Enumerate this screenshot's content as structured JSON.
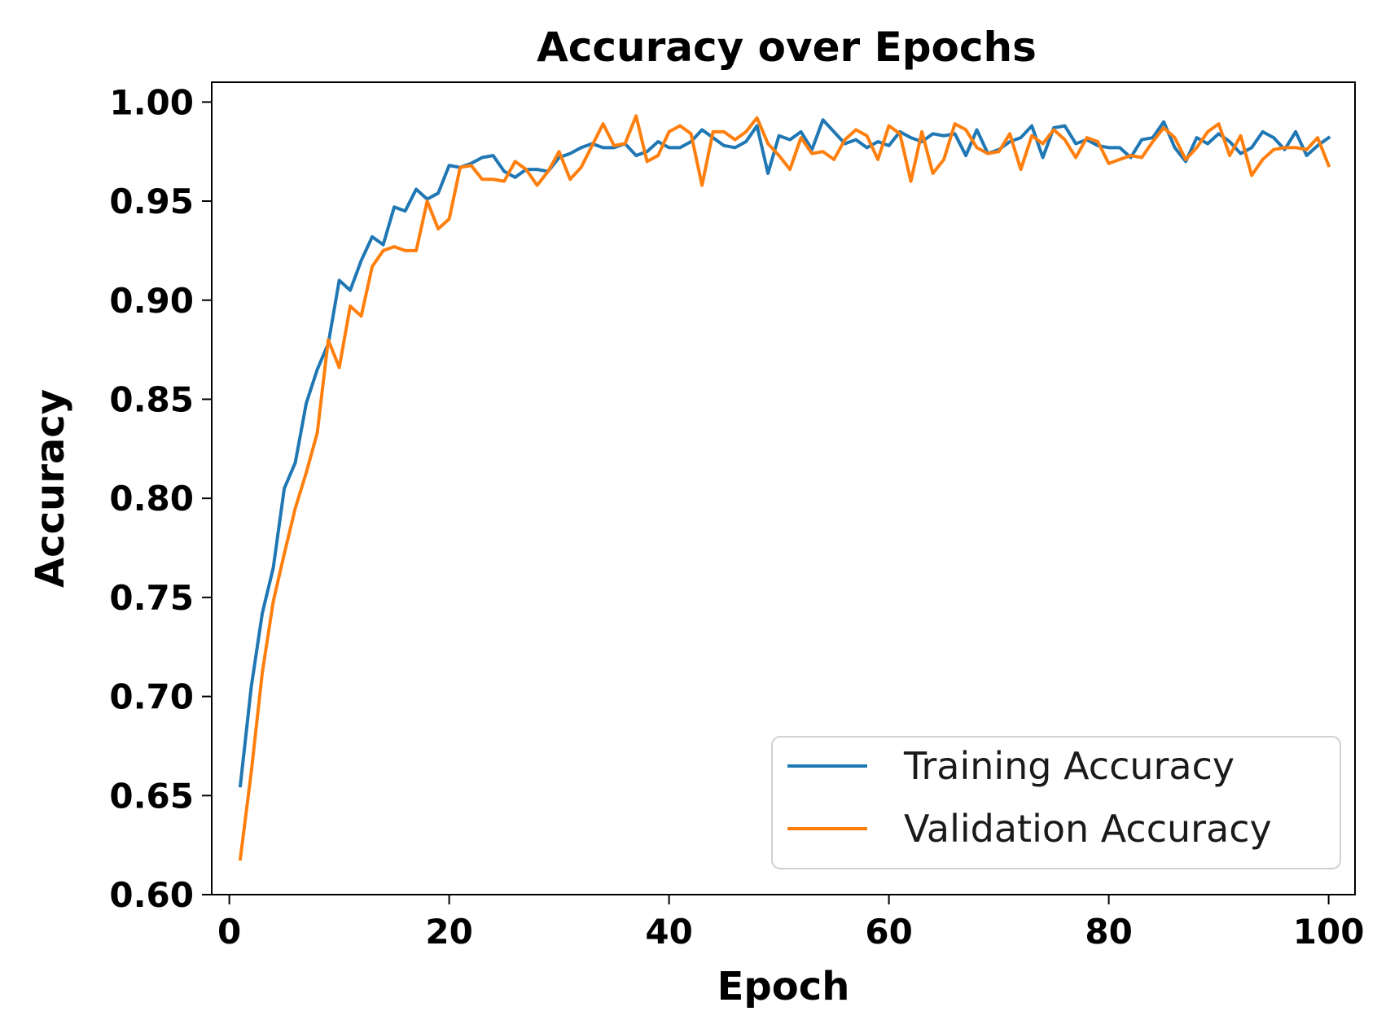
{
  "chart_data": {
    "type": "line",
    "title": "Accuracy over Epochs",
    "xlabel": "Epoch",
    "ylabel": "Accuracy",
    "xlim": [
      -1.6,
      102.4
    ],
    "ylim": [
      0.6,
      1.01
    ],
    "xticks": [
      0,
      20,
      40,
      60,
      80,
      100
    ],
    "xtick_labels": [
      "0",
      "20",
      "40",
      "60",
      "80",
      "100"
    ],
    "yticks": [
      0.6,
      0.65,
      0.7,
      0.75,
      0.8,
      0.85,
      0.9,
      0.95,
      1.0
    ],
    "ytick_labels": [
      "0.60",
      "0.65",
      "0.70",
      "0.75",
      "0.80",
      "0.85",
      "0.90",
      "0.95",
      "1.00"
    ],
    "grid": false,
    "legend_position": "lower-right",
    "x": [
      1,
      2,
      3,
      4,
      5,
      6,
      7,
      8,
      9,
      10,
      11,
      12,
      13,
      14,
      15,
      16,
      17,
      18,
      19,
      20,
      21,
      22,
      23,
      24,
      25,
      26,
      27,
      28,
      29,
      30,
      31,
      32,
      33,
      34,
      35,
      36,
      37,
      38,
      39,
      40,
      41,
      42,
      43,
      44,
      45,
      46,
      47,
      48,
      49,
      50,
      51,
      52,
      53,
      54,
      55,
      56,
      57,
      58,
      59,
      60,
      61,
      62,
      63,
      64,
      65,
      66,
      67,
      68,
      69,
      70,
      71,
      72,
      73,
      74,
      75,
      76,
      77,
      78,
      79,
      80,
      81,
      82,
      83,
      84,
      85,
      86,
      87,
      88,
      89,
      90,
      91,
      92,
      93,
      94,
      95,
      96,
      97,
      98,
      99,
      100
    ],
    "series": [
      {
        "name": "Training Accuracy",
        "color": "#1f77b4",
        "values": [
          0.655,
          0.705,
          0.742,
          0.765,
          0.805,
          0.818,
          0.848,
          0.865,
          0.878,
          0.91,
          0.905,
          0.92,
          0.932,
          0.928,
          0.947,
          0.945,
          0.956,
          0.951,
          0.954,
          0.968,
          0.967,
          0.969,
          0.972,
          0.973,
          0.965,
          0.962,
          0.966,
          0.966,
          0.965,
          0.972,
          0.974,
          0.977,
          0.979,
          0.977,
          0.977,
          0.979,
          0.973,
          0.975,
          0.98,
          0.977,
          0.977,
          0.98,
          0.986,
          0.982,
          0.978,
          0.977,
          0.98,
          0.988,
          0.964,
          0.983,
          0.981,
          0.985,
          0.976,
          0.991,
          0.985,
          0.979,
          0.981,
          0.977,
          0.98,
          0.978,
          0.985,
          0.982,
          0.98,
          0.984,
          0.983,
          0.984,
          0.973,
          0.986,
          0.974,
          0.976,
          0.98,
          0.982,
          0.988,
          0.972,
          0.987,
          0.988,
          0.979,
          0.981,
          0.978,
          0.977,
          0.977,
          0.972,
          0.981,
          0.982,
          0.99,
          0.977,
          0.97,
          0.982,
          0.979,
          0.984,
          0.98,
          0.974,
          0.977,
          0.985,
          0.982,
          0.976,
          0.985,
          0.973,
          0.978,
          0.982
        ]
      },
      {
        "name": "Validation Accuracy",
        "color": "#ff7f0e",
        "values": [
          0.618,
          0.662,
          0.712,
          0.748,
          0.772,
          0.795,
          0.813,
          0.833,
          0.88,
          0.866,
          0.897,
          0.892,
          0.917,
          0.925,
          0.927,
          0.925,
          0.925,
          0.95,
          0.936,
          0.941,
          0.967,
          0.968,
          0.961,
          0.961,
          0.96,
          0.97,
          0.966,
          0.958,
          0.965,
          0.975,
          0.961,
          0.967,
          0.978,
          0.989,
          0.978,
          0.979,
          0.993,
          0.97,
          0.973,
          0.985,
          0.988,
          0.984,
          0.958,
          0.985,
          0.985,
          0.981,
          0.985,
          0.992,
          0.979,
          0.973,
          0.966,
          0.982,
          0.974,
          0.975,
          0.971,
          0.981,
          0.986,
          0.983,
          0.971,
          0.988,
          0.984,
          0.96,
          0.985,
          0.964,
          0.971,
          0.989,
          0.986,
          0.977,
          0.974,
          0.975,
          0.984,
          0.966,
          0.983,
          0.979,
          0.986,
          0.981,
          0.972,
          0.982,
          0.98,
          0.969,
          0.971,
          0.973,
          0.972,
          0.98,
          0.987,
          0.982,
          0.971,
          0.977,
          0.985,
          0.989,
          0.973,
          0.983,
          0.963,
          0.971,
          0.976,
          0.977,
          0.977,
          0.976,
          0.982,
          0.968
        ]
      }
    ]
  }
}
